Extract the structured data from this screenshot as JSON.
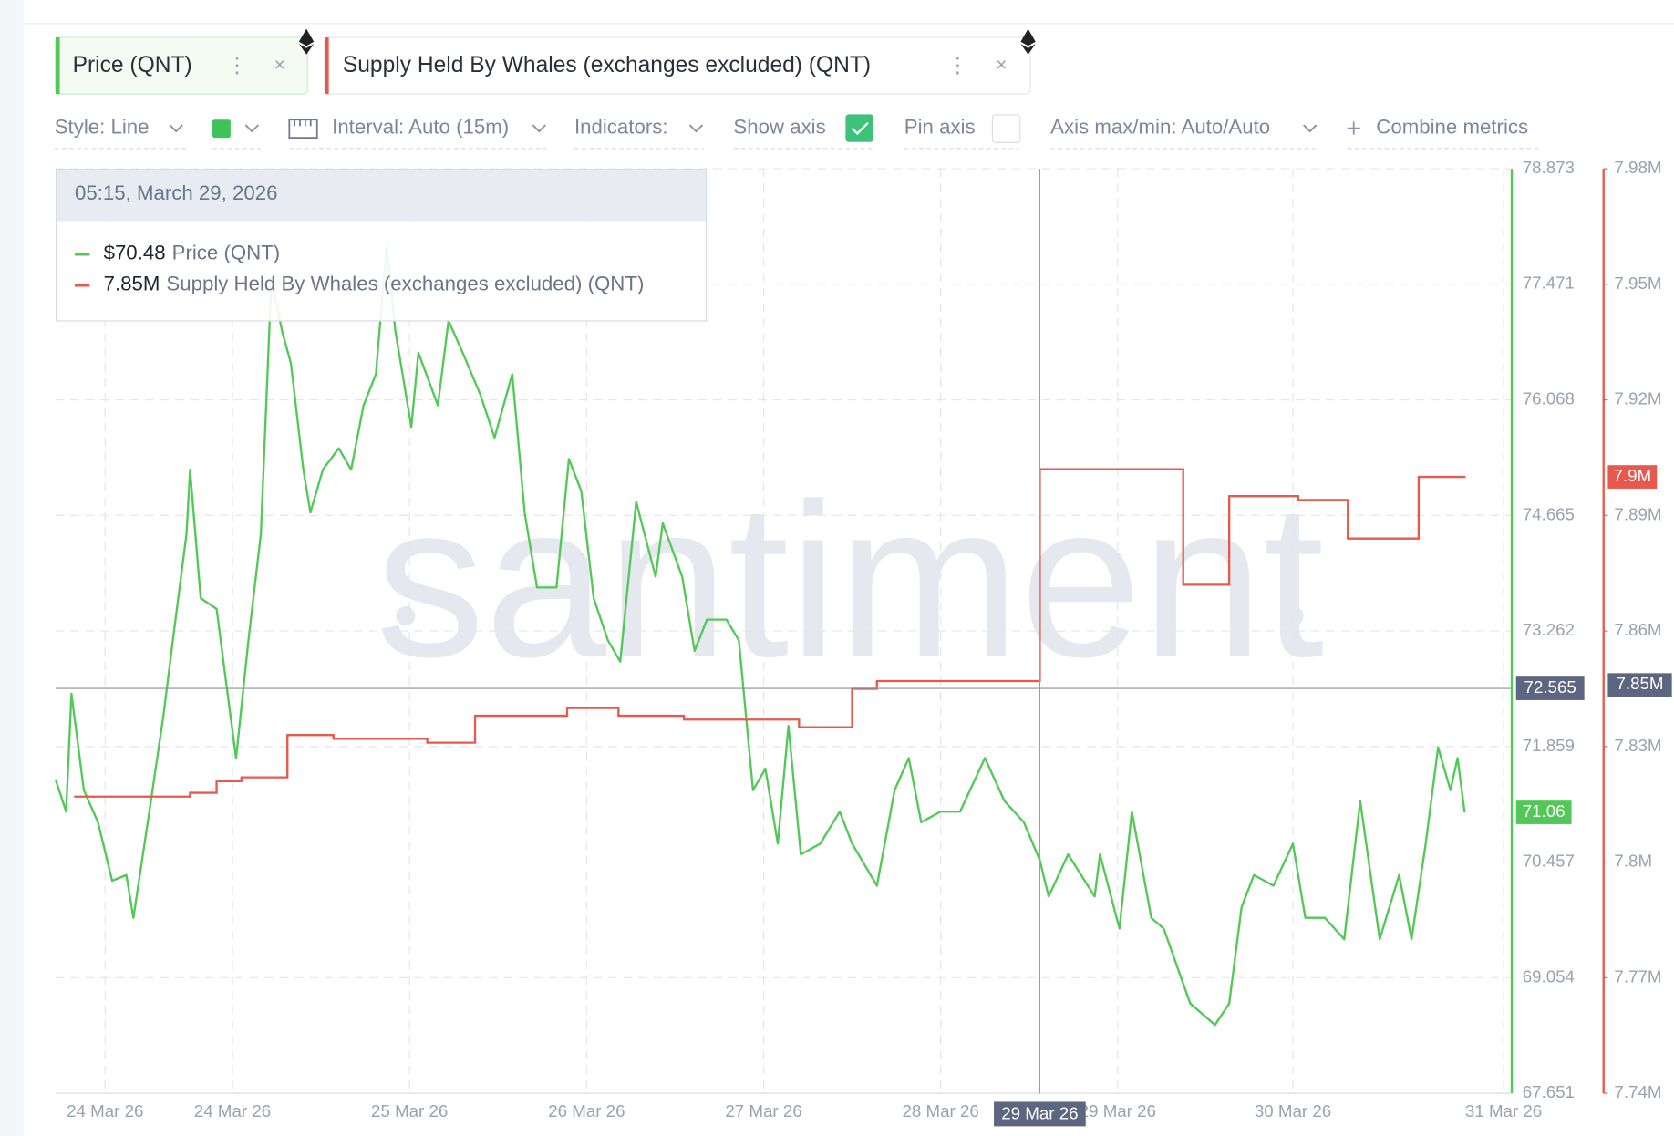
{
  "toolbar": {
    "style": "Style: Line",
    "interval": "Interval: Auto (15m)",
    "indicators": "Indicators:",
    "show_axis": "Show axis",
    "pin_axis": "Pin axis",
    "axis_range": "Axis max/min: Auto/Auto",
    "combine": "Combine metrics"
  },
  "chart_data": {
    "type": "line",
    "watermark": "santiment",
    "grid": true,
    "xlim": [
      23.66,
      31.88
    ],
    "xticks": [
      {
        "value": 23.94,
        "label": "24 Mar 26"
      },
      {
        "value": 24.66,
        "label": "24 Mar 26"
      },
      {
        "value": 25.66,
        "label": "25 Mar 26"
      },
      {
        "value": 26.66,
        "label": "26 Mar 26"
      },
      {
        "value": 27.66,
        "label": "27 Mar 26"
      },
      {
        "value": 28.66,
        "label": "28 Mar 26"
      },
      {
        "value": 29.66,
        "label": "29 Mar 26"
      },
      {
        "value": 30.65,
        "label": "30 Mar 26"
      },
      {
        "value": 31.84,
        "label": "31 Mar 26"
      }
    ],
    "ylim": [
      67.651,
      78.873
    ],
    "yticks": [
      67.651,
      69.054,
      70.457,
      71.859,
      73.262,
      74.665,
      76.068,
      77.471,
      78.873
    ],
    "y2lim": [
      7740000,
      7980000
    ],
    "y2ticks": [
      {
        "value": 7740000,
        "label": "7.74M"
      },
      {
        "value": 7770000,
        "label": "7.77M"
      },
      {
        "value": 7800000,
        "label": "7.8M"
      },
      {
        "value": 7830000,
        "label": "7.83M"
      },
      {
        "value": 7860000,
        "label": "7.86M"
      },
      {
        "value": 7890000,
        "label": "7.89M"
      },
      {
        "value": 7920000,
        "label": "7.92M"
      },
      {
        "value": 7950000,
        "label": "7.95M"
      },
      {
        "value": 7980000,
        "label": "7.98M"
      }
    ],
    "x": [
      23.66,
      23.72,
      23.75,
      23.82,
      23.9,
      23.98,
      24.06,
      24.1,
      24.19,
      24.27,
      24.33,
      24.4,
      24.42,
      24.48,
      24.57,
      24.64,
      24.68,
      24.75,
      24.82,
      24.88,
      24.94,
      24.99,
      25.06,
      25.1,
      25.17,
      25.26,
      25.33,
      25.4,
      25.47,
      25.53,
      25.58,
      25.67,
      25.71,
      25.82,
      25.88,
      25.96,
      26.06,
      26.14,
      26.24,
      26.31,
      26.38,
      26.49,
      26.56,
      26.63,
      26.7,
      26.78,
      26.85,
      26.94,
      27.05,
      27.09,
      27.2,
      27.27,
      27.34,
      27.45,
      27.52,
      27.6,
      27.67,
      27.74,
      27.8,
      27.87,
      27.98,
      28.09,
      28.16,
      28.3,
      28.4,
      28.48,
      28.55,
      28.66,
      28.77,
      28.91,
      29.02,
      29.13,
      29.22,
      29.27,
      29.38,
      29.53,
      29.56,
      29.67,
      29.74,
      29.85,
      29.92,
      30.07,
      30.14,
      30.21,
      30.29,
      30.36,
      30.43,
      30.54,
      30.65,
      30.72,
      30.83,
      30.94,
      31.03,
      31.14,
      31.25,
      31.32,
      31.4,
      31.47,
      31.54,
      31.58,
      31.62
    ],
    "series": [
      {
        "name": "Price (QNT)",
        "color": "#52c957",
        "values": [
          71.46,
          71.07,
          72.5,
          71.33,
          70.94,
          70.23,
          70.3,
          69.78,
          71.07,
          72.24,
          73.27,
          74.44,
          75.22,
          73.66,
          73.53,
          72.37,
          71.72,
          73.15,
          74.44,
          77.55,
          76.9,
          76.51,
          75.22,
          74.7,
          75.22,
          75.48,
          75.22,
          76.0,
          76.38,
          77.94,
          76.9,
          75.74,
          76.64,
          76.0,
          77.03,
          76.64,
          76.13,
          75.61,
          76.38,
          74.7,
          73.79,
          73.79,
          75.35,
          74.96,
          73.66,
          73.15,
          72.89,
          74.83,
          73.92,
          74.57,
          73.92,
          73.02,
          73.4,
          73.4,
          73.15,
          71.33,
          71.59,
          70.68,
          72.11,
          70.55,
          70.68,
          71.07,
          70.68,
          70.17,
          71.33,
          71.72,
          70.94,
          71.07,
          71.07,
          71.72,
          71.2,
          70.94,
          70.48,
          70.04,
          70.55,
          70.04,
          70.55,
          69.65,
          71.07,
          69.78,
          69.65,
          68.74,
          68.61,
          68.48,
          68.74,
          69.91,
          70.3,
          70.17,
          70.68,
          69.78,
          69.78,
          69.52,
          71.2,
          69.52,
          70.3,
          69.52,
          70.68,
          71.85,
          71.33,
          71.72,
          71.06
        ]
      },
      {
        "name": "Supply Held By Whales (exchanges excluded) (QNT)",
        "color": "#e8594d",
        "axis": "y2",
        "line_shape": "step",
        "last_value_label": "7.9M",
        "x": [
          23.77,
          24.42,
          24.57,
          24.71,
          24.97,
          25.23,
          25.76,
          26.03,
          26.55,
          26.84,
          27.21,
          27.86,
          28.16,
          28.3,
          29.22,
          30.03,
          30.29,
          30.68,
          30.96,
          31.36,
          31.62
        ],
        "values": [
          7817000,
          7818000,
          7821000,
          7822000,
          7833000,
          7832000,
          7831000,
          7838000,
          7840000,
          7838000,
          7837000,
          7835000,
          7845000,
          7847000,
          7902000,
          7872000,
          7895000,
          7894000,
          7884000,
          7900000,
          7900000
        ]
      }
    ],
    "crosshair": {
      "x": {
        "value": 29.22,
        "label": "29 Mar 26"
      },
      "y": 72.565,
      "y2": {
        "value": 7846000,
        "label": "7.85M"
      }
    },
    "tooltip": {
      "time": "05:15, March 29, 2026",
      "rows": [
        {
          "value_label": "$70.48"
        },
        {
          "value_label": "7.85M"
        }
      ]
    }
  }
}
